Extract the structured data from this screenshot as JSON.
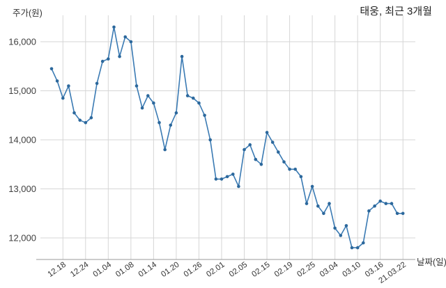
{
  "header": {
    "title": "태웅, 최근 3개월"
  },
  "chart_data": {
    "type": "line",
    "title": "태웅, 최근 3개월",
    "series_name": "주가",
    "ylabel": "주가(원)",
    "xlabel": "날짜(일)",
    "ylim": [
      11700,
      16450
    ],
    "y_ticks": [
      12000,
      13000,
      14000,
      15000,
      16000
    ],
    "y_tick_labels": [
      "12,000",
      "13,000",
      "14,000",
      "15,000",
      "16,000"
    ],
    "x_tick_labels": [
      "12.18",
      "12.24",
      "01.04",
      "01.08",
      "01.14",
      "01.20",
      "01.26",
      "02.01",
      "02.05",
      "02.15",
      "02.19",
      "02.25",
      "03.04",
      "03.10",
      "03.16",
      "21.03.22"
    ],
    "x_tick_start_index": 2,
    "x_tick_every": 4,
    "grid": true,
    "legend": "none",
    "values": [
      15450,
      15200,
      14850,
      15100,
      14550,
      14400,
      14350,
      14450,
      15150,
      15600,
      15650,
      16300,
      15700,
      16100,
      16000,
      15100,
      14650,
      14900,
      14750,
      14350,
      13800,
      14300,
      14550,
      15700,
      14900,
      14850,
      14750,
      14500,
      14000,
      13200,
      13200,
      13250,
      13300,
      13050,
      13800,
      13900,
      13600,
      13500,
      14150,
      13950,
      13750,
      13550,
      13400,
      13400,
      13250,
      12700,
      13050,
      12650,
      12500,
      12700,
      12200,
      12050,
      12250,
      11800,
      11800,
      11900,
      12550,
      12650,
      12750,
      12700,
      12700,
      12500,
      12500
    ],
    "colors": {
      "line": "#3a7ab3",
      "marker": "#2c689c",
      "grid": "#d6d6d6",
      "axis_line": "#9a9a9a",
      "tick_text": "#404040",
      "title_text": "#222222"
    }
  }
}
